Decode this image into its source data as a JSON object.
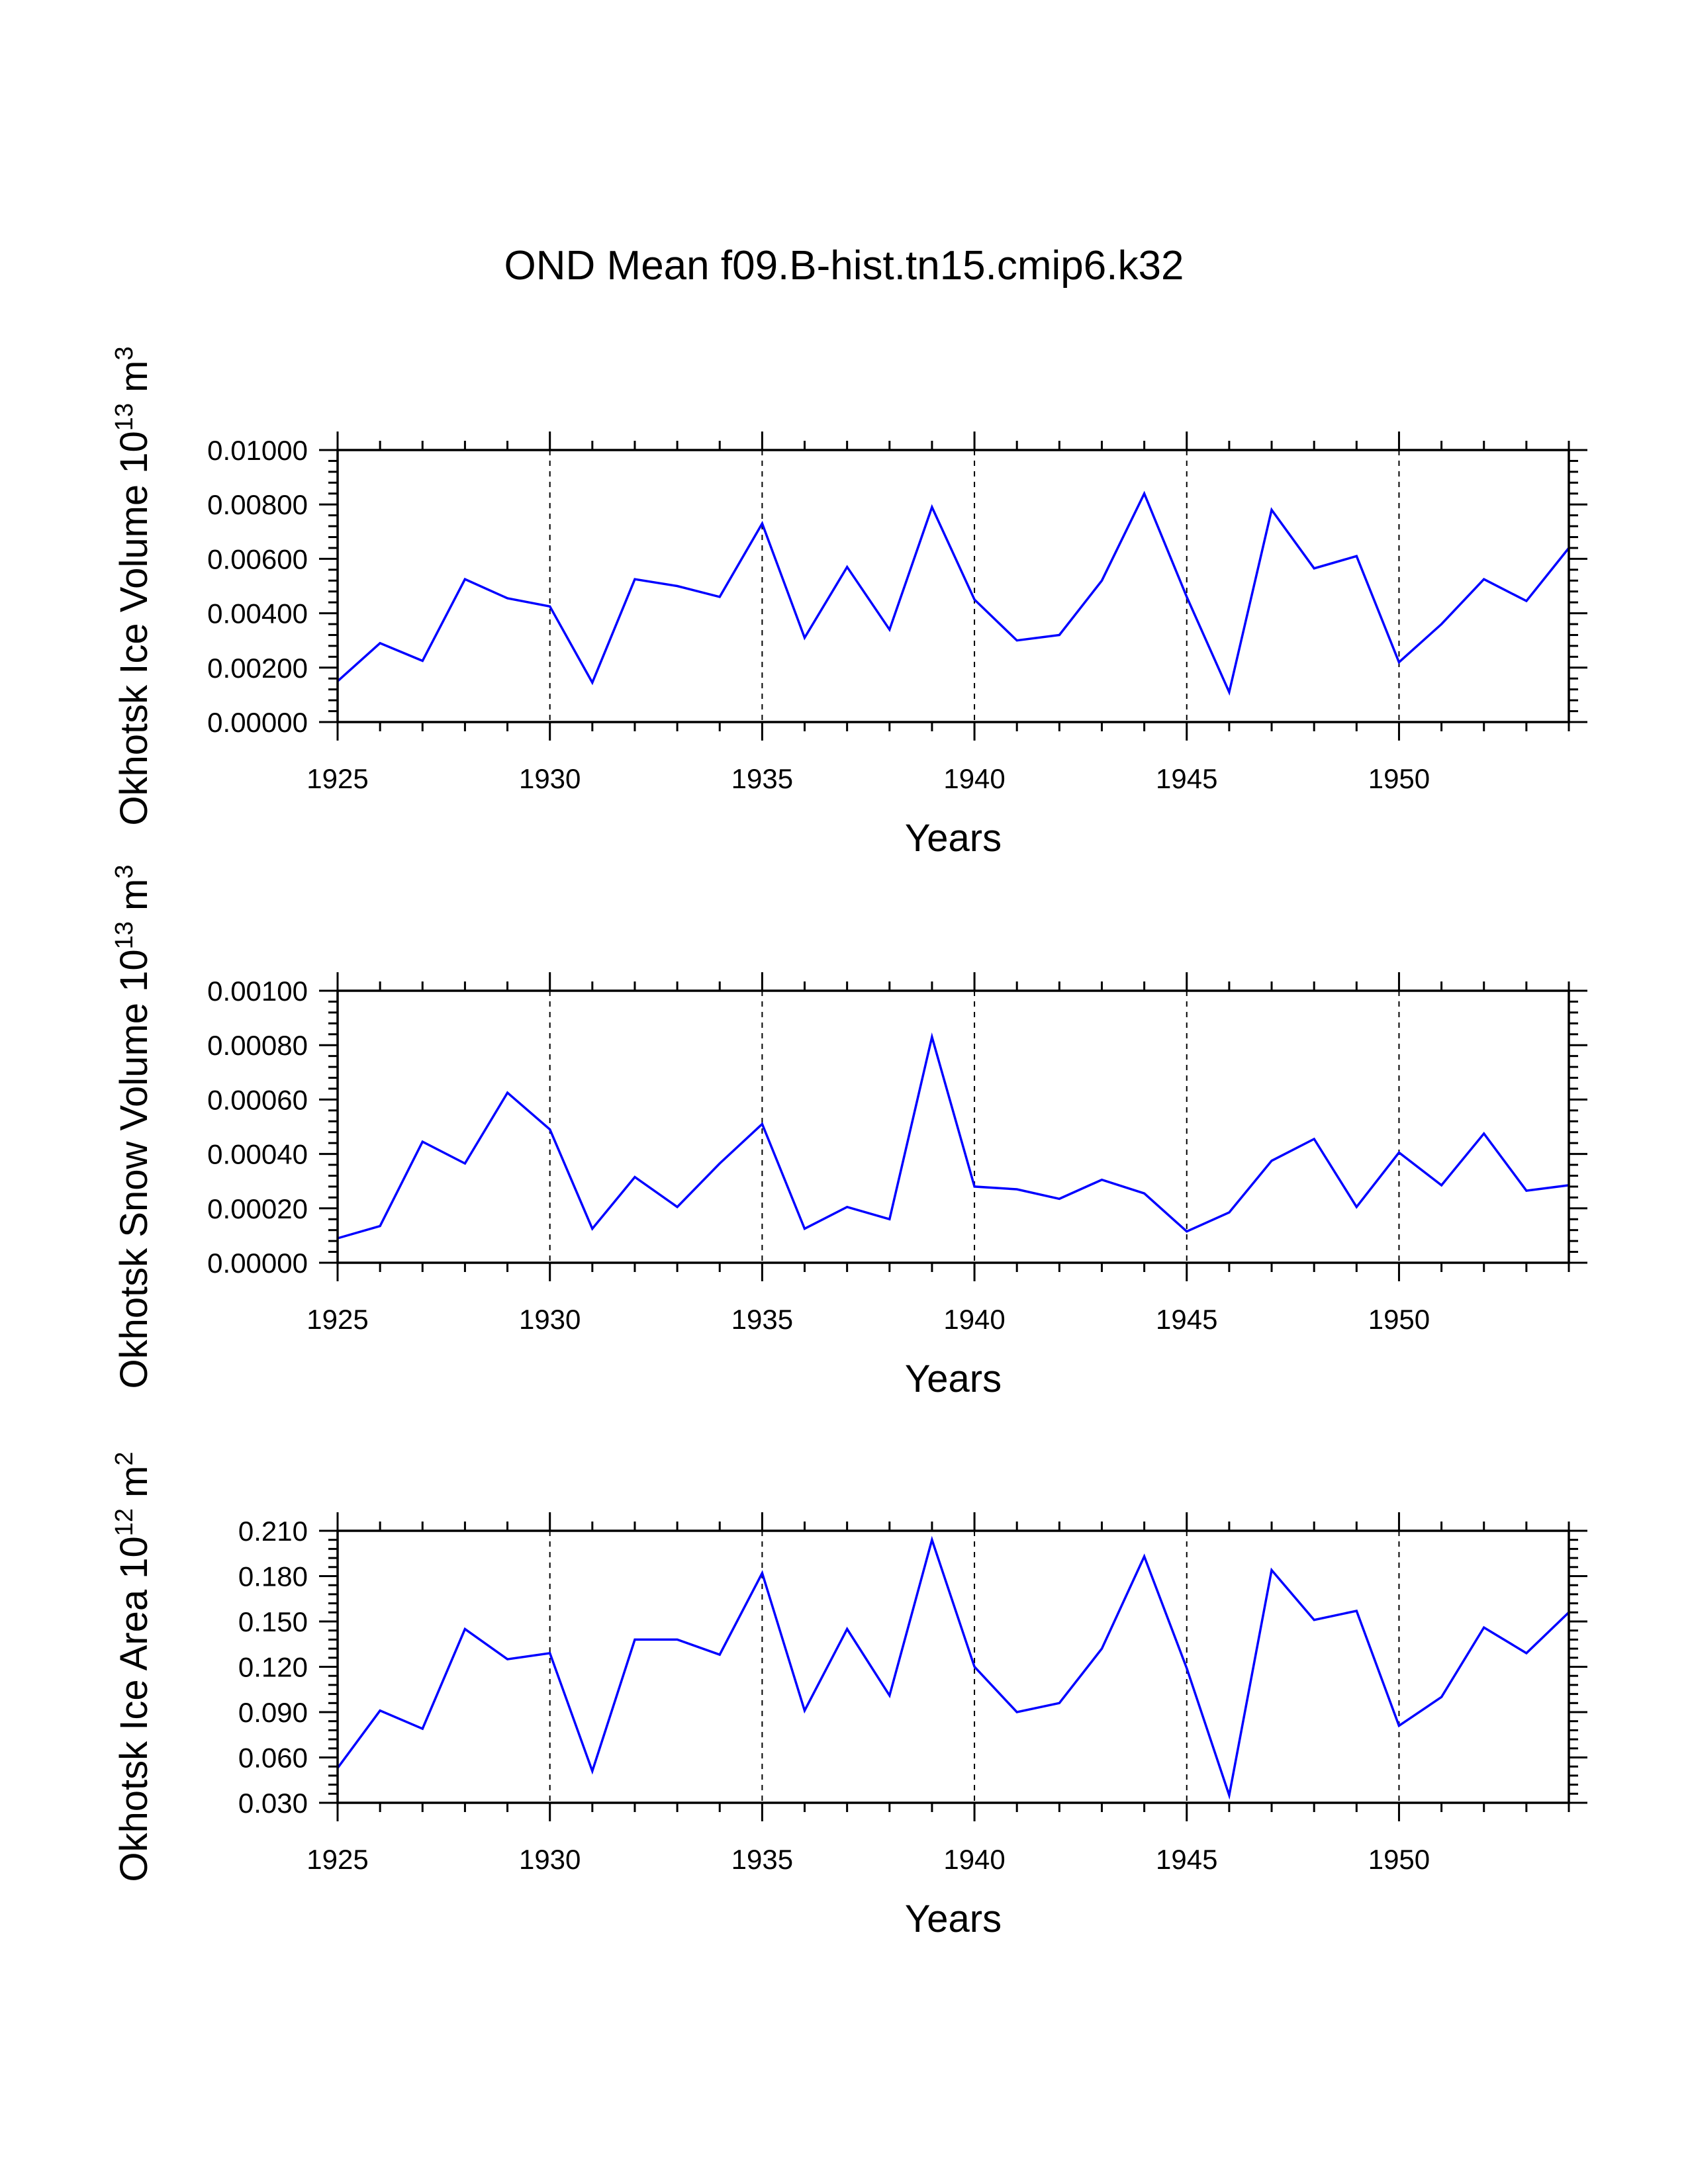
{
  "title": "OND Mean f09.B-hist.tn15.cmip6.k32",
  "colors": {
    "series": "#0000ff",
    "axes": "#000000",
    "background": "#ffffff"
  },
  "chart_data": [
    {
      "type": "line",
      "ylabel": {
        "text": "Okhotsk Ice Volume 10",
        "exp": "13",
        "unit": " m",
        "unit_exp": "3"
      },
      "xlabel": "Years",
      "xlim": [
        1925,
        1954
      ],
      "ylim": [
        0.0,
        0.01
      ],
      "xticks": [
        1925,
        1930,
        1935,
        1940,
        1945,
        1950
      ],
      "xtick_labels": [
        "1925",
        "1930",
        "1935",
        "1940",
        "1945",
        "1950"
      ],
      "yticks": [
        0.0,
        0.002,
        0.004,
        0.006,
        0.008,
        0.01
      ],
      "ytick_labels": [
        "0.00000",
        "0.00200",
        "0.00400",
        "0.00600",
        "0.00800",
        "0.01000"
      ],
      "grid": "dashed vertical lines at major x ticks",
      "series": [
        {
          "name": "Okhotsk Ice Volume",
          "x": [
            1925,
            1926,
            1927,
            1928,
            1929,
            1930,
            1931,
            1932,
            1933,
            1934,
            1935,
            1936,
            1937,
            1938,
            1939,
            1940,
            1941,
            1942,
            1943,
            1944,
            1945,
            1946,
            1947,
            1948,
            1949,
            1950,
            1951,
            1952,
            1953,
            1954
          ],
          "values": [
            0.0015,
            0.0029,
            0.00225,
            0.00525,
            0.00455,
            0.00425,
            0.00145,
            0.00525,
            0.005,
            0.0046,
            0.0073,
            0.0031,
            0.0057,
            0.0034,
            0.0079,
            0.0045,
            0.003,
            0.0032,
            0.0052,
            0.0084,
            0.0046,
            0.0011,
            0.0078,
            0.00565,
            0.0061,
            0.0022,
            0.0036,
            0.00525,
            0.00445,
            0.0064
          ]
        }
      ]
    },
    {
      "type": "line",
      "ylabel": {
        "text": "Okhotsk Snow Volume 10",
        "exp": "13",
        "unit": " m",
        "unit_exp": "3"
      },
      "xlabel": "Years",
      "xlim": [
        1925,
        1954
      ],
      "ylim": [
        0.0,
        0.001
      ],
      "xticks": [
        1925,
        1930,
        1935,
        1940,
        1945,
        1950
      ],
      "xtick_labels": [
        "1925",
        "1930",
        "1935",
        "1940",
        "1945",
        "1950"
      ],
      "yticks": [
        0.0,
        0.0002,
        0.0004,
        0.0006,
        0.0008,
        0.001
      ],
      "ytick_labels": [
        "0.00000",
        "0.00020",
        "0.00040",
        "0.00060",
        "0.00080",
        "0.00100"
      ],
      "grid": "dashed vertical lines at major x ticks",
      "series": [
        {
          "name": "Okhotsk Snow Volume",
          "x": [
            1925,
            1926,
            1927,
            1928,
            1929,
            1930,
            1931,
            1932,
            1933,
            1934,
            1935,
            1936,
            1937,
            1938,
            1939,
            1940,
            1941,
            1942,
            1943,
            1944,
            1945,
            1946,
            1947,
            1948,
            1949,
            1950,
            1951,
            1952,
            1953,
            1954
          ],
          "values": [
            9e-05,
            0.000135,
            0.000445,
            0.000365,
            0.000625,
            0.00049,
            0.000125,
            0.000315,
            0.000205,
            0.000365,
            0.00051,
            0.000125,
            0.000205,
            0.00016,
            0.00083,
            0.00028,
            0.00027,
            0.000235,
            0.000305,
            0.000255,
            0.000115,
            0.000185,
            0.000375,
            0.000455,
            0.000205,
            0.000405,
            0.000285,
            0.000475,
            0.000265,
            0.000285
          ]
        }
      ]
    },
    {
      "type": "line",
      "ylabel": {
        "text": "Okhotsk Ice Area 10",
        "exp": "12",
        "unit": " m",
        "unit_exp": "2"
      },
      "xlabel": "Years",
      "xlim": [
        1925,
        1954
      ],
      "ylim": [
        0.03,
        0.21
      ],
      "xticks": [
        1925,
        1930,
        1935,
        1940,
        1945,
        1950
      ],
      "xtick_labels": [
        "1925",
        "1930",
        "1935",
        "1940",
        "1945",
        "1950"
      ],
      "yticks": [
        0.03,
        0.06,
        0.09,
        0.12,
        0.15,
        0.18,
        0.21
      ],
      "ytick_labels": [
        "0.030",
        "0.060",
        "0.090",
        "0.120",
        "0.150",
        "0.180",
        "0.210"
      ],
      "grid": "dashed vertical lines at major x ticks",
      "series": [
        {
          "name": "Okhotsk Ice Area",
          "x": [
            1925,
            1926,
            1927,
            1928,
            1929,
            1930,
            1931,
            1932,
            1933,
            1934,
            1935,
            1936,
            1937,
            1938,
            1939,
            1940,
            1941,
            1942,
            1943,
            1944,
            1945,
            1946,
            1947,
            1948,
            1949,
            1950,
            1951,
            1952,
            1953,
            1954
          ],
          "values": [
            0.053,
            0.091,
            0.079,
            0.145,
            0.125,
            0.129,
            0.051,
            0.138,
            0.138,
            0.128,
            0.182,
            0.091,
            0.145,
            0.101,
            0.204,
            0.12,
            0.09,
            0.096,
            0.132,
            0.193,
            0.119,
            0.035,
            0.184,
            0.151,
            0.157,
            0.081,
            0.1,
            0.146,
            0.129,
            0.156
          ]
        }
      ]
    }
  ]
}
